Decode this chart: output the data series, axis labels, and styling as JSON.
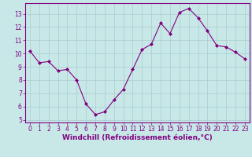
{
  "x": [
    0,
    1,
    2,
    3,
    4,
    5,
    6,
    7,
    8,
    9,
    10,
    11,
    12,
    13,
    14,
    15,
    16,
    17,
    18,
    19,
    20,
    21,
    22,
    23
  ],
  "y": [
    10.2,
    9.3,
    9.4,
    8.7,
    8.8,
    8.0,
    6.2,
    5.4,
    5.6,
    6.5,
    7.3,
    8.8,
    10.3,
    10.7,
    12.3,
    11.5,
    13.1,
    13.4,
    12.7,
    11.7,
    10.6,
    10.5,
    10.1,
    9.6
  ],
  "line_color": "#800080",
  "marker": "D",
  "marker_size": 2,
  "bg_color": "#c8e8e8",
  "grid_color": "#aacccc",
  "xlabel": "Windchill (Refroidissement éolien,°C)",
  "xlim": [
    -0.5,
    23.5
  ],
  "ylim": [
    4.8,
    13.8
  ],
  "yticks": [
    5,
    6,
    7,
    8,
    9,
    10,
    11,
    12,
    13
  ],
  "xticks": [
    0,
    1,
    2,
    3,
    4,
    5,
    6,
    7,
    8,
    9,
    10,
    11,
    12,
    13,
    14,
    15,
    16,
    17,
    18,
    19,
    20,
    21,
    22,
    23
  ],
  "tick_label_size": 5.5,
  "xlabel_size": 6.5,
  "line_width": 0.8
}
